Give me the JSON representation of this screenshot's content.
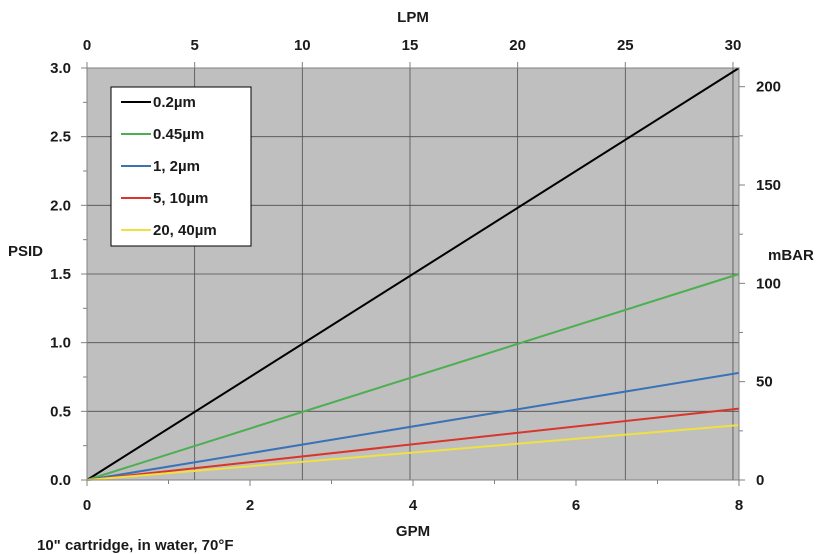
{
  "chart_data": {
    "type": "line",
    "x_axis": {
      "label": "GPM",
      "range": [
        0,
        8
      ],
      "ticks": [
        "0",
        "2",
        "4",
        "6",
        "8"
      ]
    },
    "x2_axis": {
      "label": "LPM",
      "range": [
        0,
        30.28
      ],
      "ticks": [
        "0",
        "5",
        "10",
        "15",
        "20",
        "25",
        "30"
      ]
    },
    "y_axis": {
      "label": "PSID",
      "range": [
        0,
        3.0
      ],
      "ticks": [
        "0.0",
        "0.5",
        "1.0",
        "1.5",
        "2.0",
        "2.5",
        "3.0"
      ]
    },
    "y2_axis": {
      "label": "mBAR",
      "range": [
        0,
        209.5
      ],
      "ticks": [
        "0",
        "50",
        "100",
        "150",
        "200"
      ]
    },
    "grid": true,
    "legend_position": "top-left",
    "series": [
      {
        "name": "0.2µm",
        "color": "#000000",
        "x": [
          0,
          8
        ],
        "y": [
          0,
          3.0
        ]
      },
      {
        "name": "0.45µm",
        "color": "#4caf50",
        "x": [
          0,
          8
        ],
        "y": [
          0,
          1.5
        ]
      },
      {
        "name": "1, 2µm",
        "color": "#3a72b8",
        "x": [
          0,
          8
        ],
        "y": [
          0,
          0.78
        ]
      },
      {
        "name": "5, 10µm",
        "color": "#d9352b",
        "x": [
          0,
          8
        ],
        "y": [
          0,
          0.52
        ]
      },
      {
        "name": "20, 40µm",
        "color": "#f0e040",
        "x": [
          0,
          8
        ],
        "y": [
          0,
          0.4
        ]
      }
    ],
    "note": "10\" cartridge, in water, 70°F"
  }
}
